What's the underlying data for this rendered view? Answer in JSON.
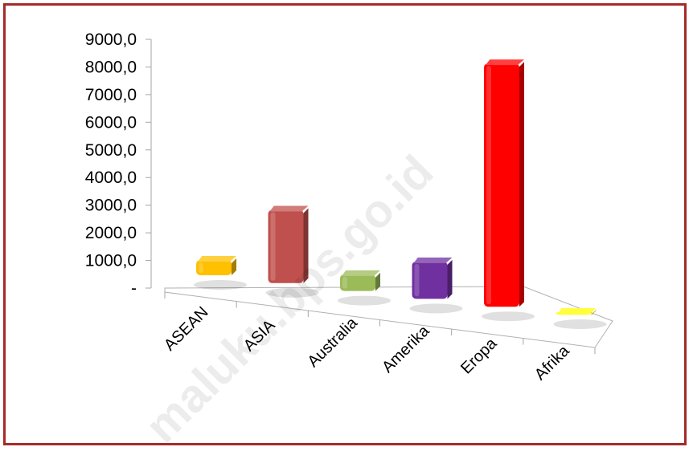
{
  "chart_data": {
    "type": "bar",
    "title": "",
    "xlabel": "",
    "ylabel": "",
    "categories": [
      "ASEAN",
      "ASIA",
      "Australia",
      "Amerika",
      "Eropa",
      "Afrika"
    ],
    "values": [
      550,
      2650,
      600,
      1350,
      8800,
      40
    ],
    "colors": [
      "#ffc000",
      "#c0504d",
      "#9bbb59",
      "#7030a0",
      "#ff0000",
      "#ffff00"
    ],
    "ylim": [
      0,
      9000
    ],
    "yticks": [
      "-",
      "1000,0",
      "2000,0",
      "3000,0",
      "4000,0",
      "5000,0",
      "6000,0",
      "7000,0",
      "8000,0",
      "9000,0"
    ],
    "grid": false,
    "legend": "none"
  },
  "watermark": "maluku.bps.go.id"
}
